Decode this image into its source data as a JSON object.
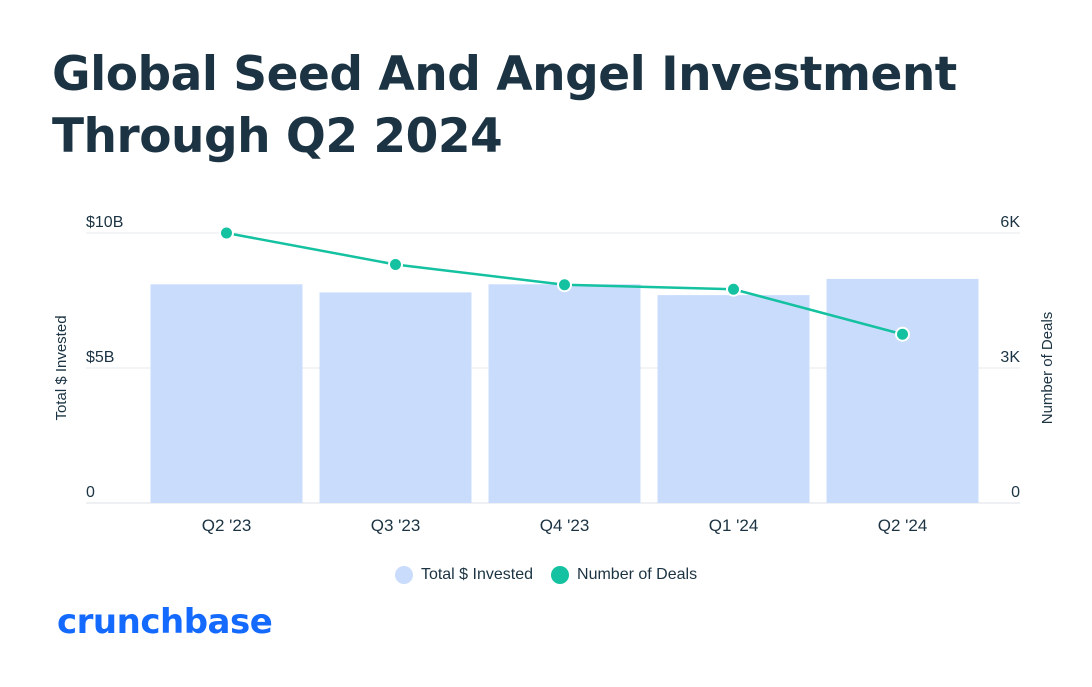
{
  "title_lines": [
    "Global Seed And Angel Investment",
    "Through Q2 2024"
  ],
  "brand": "crunchbase",
  "colors": {
    "bar": "#c9dcfc",
    "line": "#14c1a0",
    "text": "#1b3342",
    "grid": "#e4e8ec",
    "brand": "#146aff"
  },
  "chart_data": {
    "type": "bar+line",
    "categories": [
      "Q2 '23",
      "Q3 '23",
      "Q4 '23",
      "Q1 '24",
      "Q2 '24"
    ],
    "series": [
      {
        "name": "Total $ Invested",
        "type": "bar",
        "axis": "left",
        "values": [
          8.1,
          7.8,
          8.1,
          7.7,
          8.3
        ]
      },
      {
        "name": "Number of Deals",
        "type": "line",
        "axis": "right",
        "values": [
          6000,
          5300,
          4850,
          4750,
          3750
        ]
      }
    ],
    "y_left": {
      "label": "Total $ Invested",
      "range": [
        0,
        10
      ],
      "ticks": [
        0,
        5,
        10
      ],
      "tick_labels": [
        "0",
        "$5B",
        "$10B"
      ]
    },
    "y_right": {
      "label": "Number of Deals",
      "range": [
        0,
        6000
      ],
      "ticks": [
        0,
        3000,
        6000
      ],
      "tick_labels": [
        "0",
        "3K",
        "6K"
      ]
    },
    "grid": true,
    "legend_position": "bottom-center"
  }
}
